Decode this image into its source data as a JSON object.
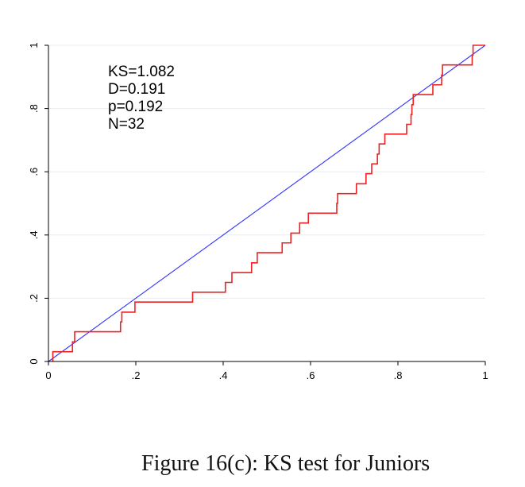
{
  "caption": "Figure 16(c): KS test for Juniors",
  "chart_data": {
    "type": "line",
    "title": "",
    "xlabel": "",
    "ylabel": "",
    "xlim": [
      0,
      1
    ],
    "ylim": [
      0,
      1
    ],
    "grid": true,
    "x_ticks": [
      0,
      0.2,
      0.4,
      0.6,
      0.8,
      1
    ],
    "x_tick_labels": [
      "0",
      ".2",
      ".4",
      ".6",
      ".8",
      "1"
    ],
    "y_ticks": [
      0,
      0.2,
      0.4,
      0.6,
      0.8,
      1
    ],
    "y_tick_labels": [
      "0",
      ".2",
      ".4",
      ".6",
      ".8",
      "1"
    ],
    "stats": [
      "KS=1.082",
      "D=0.191",
      "p=0.192",
      "N=32"
    ],
    "series": [
      {
        "type": "line",
        "color": "#3333ff",
        "points": [
          [
            0,
            0
          ],
          [
            1,
            1
          ]
        ]
      },
      {
        "type": "step",
        "color": "#ee2222",
        "points": [
          [
            0.01,
            0.0
          ],
          [
            0.01,
            0.031
          ],
          [
            0.055,
            0.031
          ],
          [
            0.055,
            0.062
          ],
          [
            0.06,
            0.062
          ],
          [
            0.06,
            0.094
          ],
          [
            0.165,
            0.094
          ],
          [
            0.165,
            0.125
          ],
          [
            0.168,
            0.125
          ],
          [
            0.168,
            0.156
          ],
          [
            0.198,
            0.156
          ],
          [
            0.198,
            0.188
          ],
          [
            0.33,
            0.188
          ],
          [
            0.33,
            0.219
          ],
          [
            0.405,
            0.219
          ],
          [
            0.405,
            0.25
          ],
          [
            0.42,
            0.25
          ],
          [
            0.42,
            0.281
          ],
          [
            0.465,
            0.281
          ],
          [
            0.465,
            0.312
          ],
          [
            0.478,
            0.312
          ],
          [
            0.478,
            0.344
          ],
          [
            0.535,
            0.344
          ],
          [
            0.535,
            0.375
          ],
          [
            0.555,
            0.375
          ],
          [
            0.555,
            0.406
          ],
          [
            0.575,
            0.406
          ],
          [
            0.575,
            0.438
          ],
          [
            0.595,
            0.438
          ],
          [
            0.595,
            0.469
          ],
          [
            0.66,
            0.469
          ],
          [
            0.66,
            0.5
          ],
          [
            0.662,
            0.5
          ],
          [
            0.662,
            0.531
          ],
          [
            0.705,
            0.531
          ],
          [
            0.705,
            0.562
          ],
          [
            0.727,
            0.562
          ],
          [
            0.727,
            0.594
          ],
          [
            0.74,
            0.594
          ],
          [
            0.74,
            0.625
          ],
          [
            0.753,
            0.625
          ],
          [
            0.753,
            0.656
          ],
          [
            0.757,
            0.656
          ],
          [
            0.757,
            0.688
          ],
          [
            0.77,
            0.688
          ],
          [
            0.77,
            0.719
          ],
          [
            0.82,
            0.719
          ],
          [
            0.82,
            0.75
          ],
          [
            0.83,
            0.75
          ],
          [
            0.83,
            0.781
          ],
          [
            0.832,
            0.781
          ],
          [
            0.832,
            0.812
          ],
          [
            0.835,
            0.812
          ],
          [
            0.835,
            0.844
          ],
          [
            0.88,
            0.844
          ],
          [
            0.88,
            0.875
          ],
          [
            0.9,
            0.875
          ],
          [
            0.9,
            0.906
          ],
          [
            0.902,
            0.906
          ],
          [
            0.902,
            0.938
          ],
          [
            0.97,
            0.938
          ],
          [
            0.97,
            0.969
          ],
          [
            0.972,
            0.969
          ],
          [
            0.972,
            1.0
          ],
          [
            1.0,
            1.0
          ]
        ]
      }
    ]
  }
}
